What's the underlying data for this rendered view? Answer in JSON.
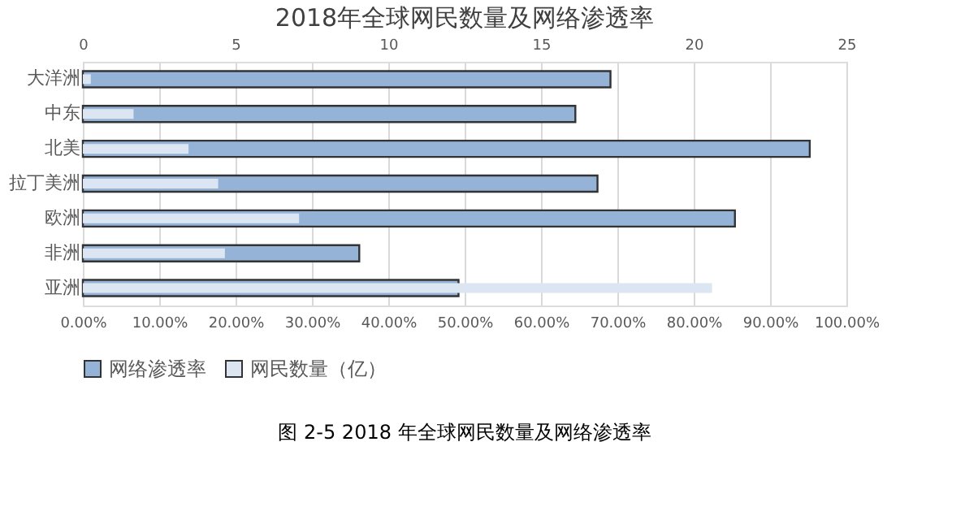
{
  "chart_data": {
    "type": "bar",
    "orientation": "horizontal",
    "title": "2018年全球网民数量及网络渗透率",
    "categories": [
      "大洋洲",
      "中东",
      "北美",
      "拉丁美洲",
      "欧洲",
      "非洲",
      "亚洲"
    ],
    "series": [
      {
        "name": "网络渗透率",
        "color": "#95b3d7",
        "values": [
          69.1,
          64.5,
          95.2,
          67.4,
          85.4,
          36.2,
          49.2
        ]
      },
      {
        "name": "网民数量（亿）",
        "color": "#dce6f2",
        "axis": "x2",
        "values": [
          0.26,
          1.66,
          3.46,
          4.43,
          7.08,
          4.65,
          20.6
        ]
      }
    ],
    "xlim": [
      0,
      100
    ],
    "xticks": [
      {
        "value": 0,
        "label": "0.00%"
      },
      {
        "value": 10,
        "label": "10.00%"
      },
      {
        "value": 20,
        "label": "20.00%"
      },
      {
        "value": 30,
        "label": "30.00%"
      },
      {
        "value": 40,
        "label": "40.00%"
      },
      {
        "value": 50,
        "label": "50.00%"
      },
      {
        "value": 60,
        "label": "60.00%"
      },
      {
        "value": 70,
        "label": "70.00%"
      },
      {
        "value": 80,
        "label": "80.00%"
      },
      {
        "value": 90,
        "label": "90.00%"
      },
      {
        "value": 100,
        "label": "100.00%"
      }
    ],
    "x2lim": [
      0,
      25
    ],
    "x2ticks": [
      0,
      5,
      10,
      15,
      20,
      25
    ],
    "grid": "x",
    "legend": "bottom",
    "annotations": [
      "图 2-5  2018 年全球网民数量及网络渗透率"
    ]
  }
}
